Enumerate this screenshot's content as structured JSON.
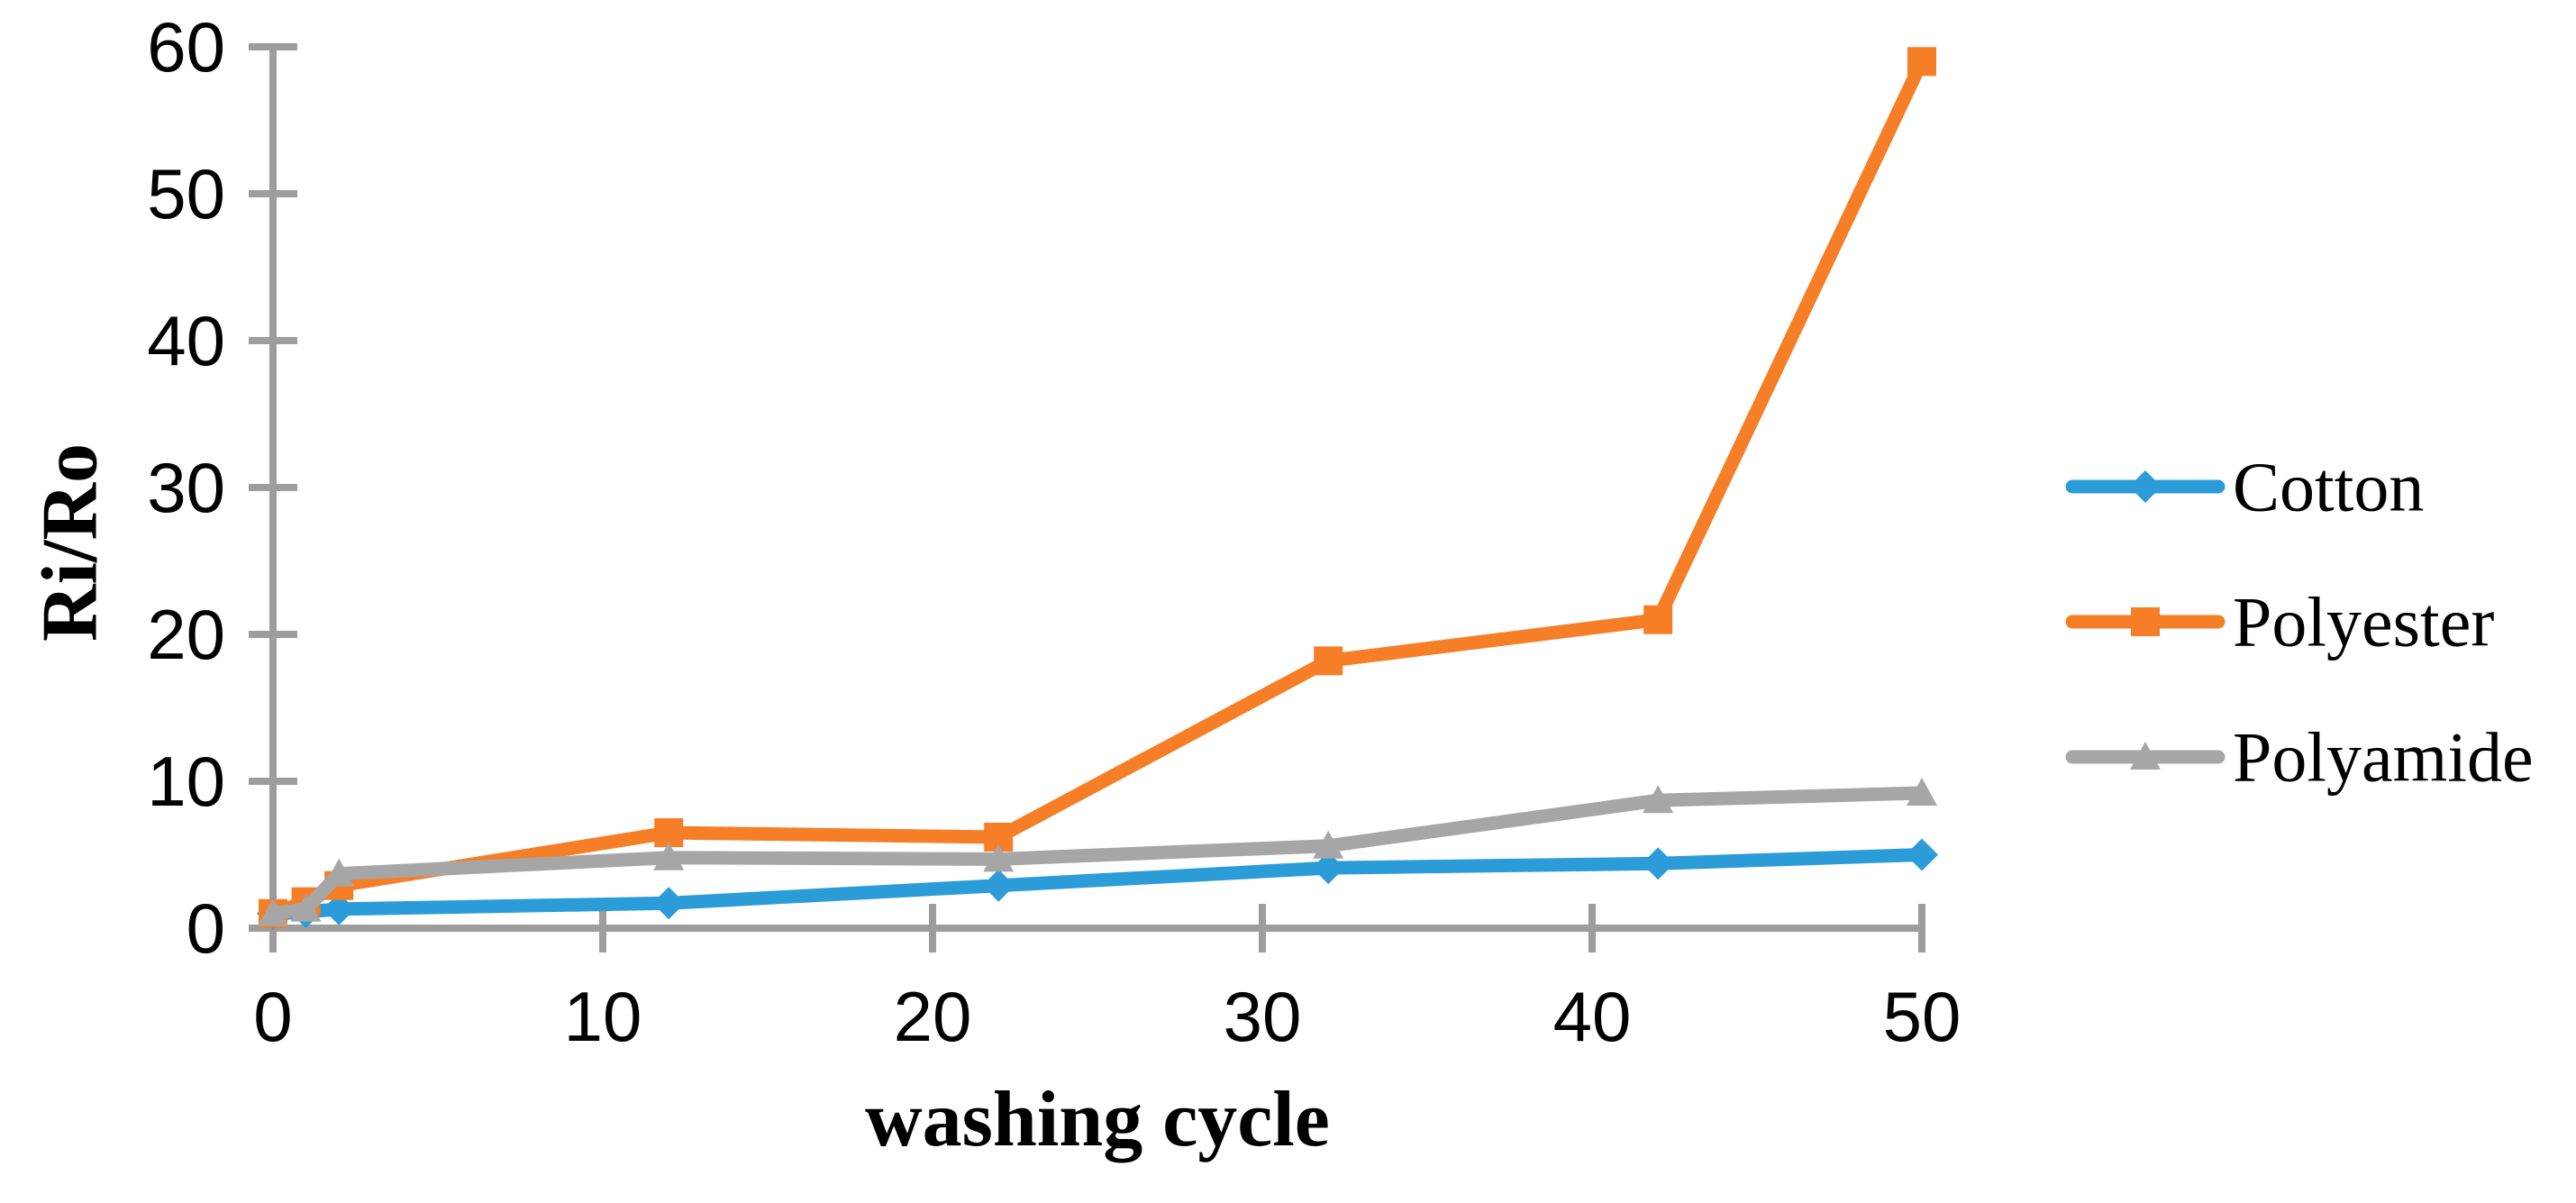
{
  "chart_data": {
    "type": "line",
    "title": "",
    "xlabel": "washing cycle",
    "ylabel": "Ri/Ro",
    "xlim": [
      0,
      50
    ],
    "ylim": [
      0,
      60
    ],
    "x_ticks": [
      0,
      10,
      20,
      30,
      40,
      50
    ],
    "y_ticks": [
      0,
      10,
      20,
      30,
      40,
      50,
      60
    ],
    "grid": false,
    "legend_position": "right",
    "axis_color": "#9D9D9D",
    "text_color": "#000000",
    "x": [
      0,
      1,
      2,
      12,
      22,
      32,
      42,
      50
    ],
    "series": [
      {
        "name": "Cotton",
        "color": "#2B9CD8",
        "marker": "diamond",
        "values": [
          1,
          1.1,
          1.3,
          1.7,
          2.9,
          4.1,
          4.4,
          5
        ]
      },
      {
        "name": "Polyester",
        "color": "#F57E27",
        "marker": "square",
        "values": [
          1,
          1.8,
          2.9,
          6.5,
          6.2,
          18.2,
          21,
          59
        ]
      },
      {
        "name": "Polyamide",
        "color": "#A6A6A6",
        "marker": "triangle",
        "values": [
          1,
          1.3,
          3.7,
          4.8,
          4.7,
          5.6,
          8.7,
          9.2
        ]
      }
    ]
  }
}
